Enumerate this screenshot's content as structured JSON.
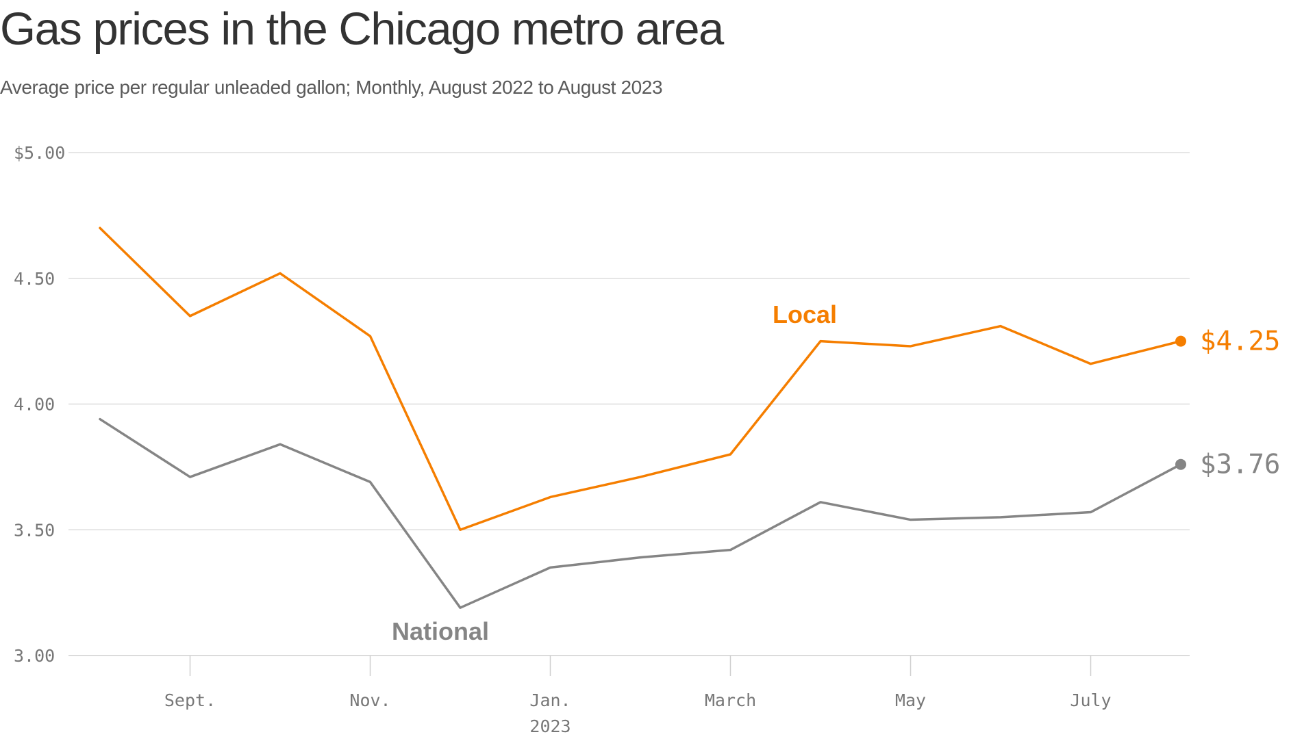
{
  "title": "Gas prices in the Chicago metro area",
  "subtitle": "Average price per regular unleaded gallon; Monthly, August 2022 to August 2023",
  "chart_data": {
    "type": "line",
    "x": [
      "2022-08",
      "2022-09",
      "2022-10",
      "2022-11",
      "2022-12",
      "2023-01",
      "2023-02",
      "2023-03",
      "2023-04",
      "2023-05",
      "2023-06",
      "2023-07",
      "2023-08"
    ],
    "series": [
      {
        "name": "Local",
        "color": "#f57e00",
        "values": [
          4.7,
          4.35,
          4.52,
          4.27,
          3.5,
          3.63,
          3.71,
          3.8,
          4.25,
          4.23,
          4.31,
          4.16,
          4.25
        ]
      },
      {
        "name": "National",
        "color": "#858585",
        "values": [
          3.94,
          3.71,
          3.84,
          3.69,
          3.19,
          3.35,
          3.39,
          3.42,
          3.61,
          3.54,
          3.55,
          3.57,
          3.76
        ]
      }
    ],
    "end_labels": [
      "$4.25",
      "$3.76"
    ],
    "y_ticks": [
      {
        "value": 5.0,
        "label": "$5.00"
      },
      {
        "value": 4.5,
        "label": "4.50"
      },
      {
        "value": 4.0,
        "label": "4.00"
      },
      {
        "value": 3.5,
        "label": "3.50"
      },
      {
        "value": 3.0,
        "label": "3.00"
      }
    ],
    "x_ticks": [
      {
        "x": "2022-09",
        "label": "Sept."
      },
      {
        "x": "2022-11",
        "label": "Nov."
      },
      {
        "x": "2023-01",
        "label": "Jan."
      },
      {
        "x": "2023-03",
        "label": "March"
      },
      {
        "x": "2023-05",
        "label": "May"
      },
      {
        "x": "2023-07",
        "label": "July"
      }
    ],
    "year_label": {
      "x": "2023-01",
      "label": "2023"
    },
    "ylim": [
      3.0,
      5.0
    ],
    "grid": true,
    "xlabel": "",
    "ylabel": ""
  }
}
